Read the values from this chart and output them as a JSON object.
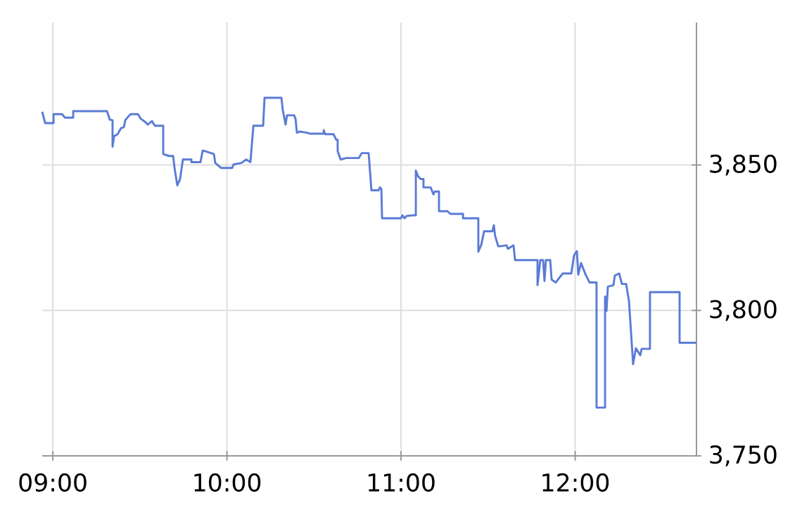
{
  "chart_data": {
    "type": "line",
    "color": "#5b7bd5",
    "grid": true,
    "xlim": [
      8.939,
      12.697
    ],
    "ylim": [
      3750,
      3899
    ],
    "xticks": [
      {
        "value": 9,
        "label": "09:00"
      },
      {
        "value": 10,
        "label": "10:00"
      },
      {
        "value": 11,
        "label": "11:00"
      },
      {
        "value": 12,
        "label": "12:00"
      }
    ],
    "yticks": [
      {
        "value": 3750,
        "label": "3,750"
      },
      {
        "value": 3800,
        "label": "3,800"
      },
      {
        "value": 3850,
        "label": "3,850"
      }
    ],
    "x": [
      8.939,
      8.956,
      9.004,
      9.004,
      9.053,
      9.069,
      9.117,
      9.117,
      9.311,
      9.327,
      9.343,
      9.343,
      9.352,
      9.372,
      9.392,
      9.408,
      9.416,
      9.44,
      9.448,
      9.489,
      9.505,
      9.529,
      9.545,
      9.57,
      9.586,
      9.634,
      9.634,
      9.667,
      9.691,
      9.699,
      9.715,
      9.731,
      9.747,
      9.796,
      9.796,
      9.848,
      9.861,
      9.925,
      9.933,
      9.966,
      10.03,
      10.038,
      10.083,
      10.111,
      10.135,
      10.152,
      10.208,
      10.216,
      10.313,
      10.321,
      10.337,
      10.345,
      10.386,
      10.394,
      10.402,
      10.418,
      10.459,
      10.475,
      10.556,
      10.556,
      10.564,
      10.612,
      10.628,
      10.636,
      10.636,
      10.653,
      10.685,
      10.758,
      10.774,
      10.814,
      10.83,
      10.871,
      10.879,
      10.887,
      10.891,
      11.0,
      11.008,
      11.02,
      11.032,
      11.065,
      11.085,
      11.085,
      11.097,
      11.113,
      11.129,
      11.129,
      11.17,
      11.186,
      11.194,
      11.218,
      11.218,
      11.267,
      11.283,
      11.356,
      11.356,
      11.444,
      11.444,
      11.461,
      11.477,
      11.525,
      11.533,
      11.541,
      11.558,
      11.574,
      11.606,
      11.614,
      11.646,
      11.655,
      11.735,
      11.784,
      11.784,
      11.8,
      11.816,
      11.824,
      11.832,
      11.857,
      11.865,
      11.889,
      11.913,
      11.929,
      11.978,
      11.994,
      12.01,
      12.018,
      12.034,
      12.059,
      12.083,
      12.123,
      12.123,
      12.172,
      12.172,
      12.18,
      12.188,
      12.22,
      12.228,
      12.253,
      12.269,
      12.293,
      12.309,
      12.333,
      12.349,
      12.374,
      12.382,
      12.43,
      12.43,
      12.6,
      12.6,
      12.697
    ],
    "values": [
      3868.3,
      3864.4,
      3864.4,
      3867.5,
      3867.5,
      3866.3,
      3866.3,
      3868.5,
      3868.5,
      3865.6,
      3865.4,
      3856.3,
      3859.9,
      3860.6,
      3862.7,
      3863.0,
      3865.4,
      3867.1,
      3867.5,
      3867.5,
      3865.9,
      3864.9,
      3863.9,
      3865.1,
      3863.5,
      3863.5,
      3853.8,
      3853.1,
      3853.1,
      3849.0,
      3843.0,
      3845.2,
      3851.9,
      3851.9,
      3851.0,
      3851.0,
      3855.0,
      3853.8,
      3850.7,
      3849.0,
      3849.0,
      3850.2,
      3850.7,
      3851.9,
      3851.0,
      3863.5,
      3863.5,
      3873.1,
      3873.1,
      3868.8,
      3863.9,
      3867.1,
      3867.1,
      3865.9,
      3861.1,
      3861.5,
      3861.1,
      3860.8,
      3860.8,
      3862.0,
      3860.6,
      3860.6,
      3858.7,
      3858.7,
      3854.8,
      3851.9,
      3852.4,
      3852.4,
      3854.1,
      3854.1,
      3841.3,
      3841.3,
      3842.3,
      3841.8,
      3831.7,
      3831.7,
      3832.7,
      3831.7,
      3832.5,
      3832.7,
      3832.7,
      3848.1,
      3846.2,
      3845.2,
      3845.2,
      3842.3,
      3842.3,
      3839.9,
      3840.9,
      3840.9,
      3834.1,
      3834.1,
      3833.2,
      3833.2,
      3831.7,
      3831.7,
      3820.2,
      3822.6,
      3827.2,
      3827.2,
      3829.3,
      3825.5,
      3822.1,
      3822.1,
      3822.4,
      3821.2,
      3822.4,
      3817.3,
      3817.3,
      3817.3,
      3808.7,
      3817.3,
      3817.3,
      3810.1,
      3817.3,
      3817.3,
      3810.6,
      3809.6,
      3811.5,
      3812.7,
      3812.7,
      3819.0,
      3820.4,
      3812.3,
      3816.3,
      3812.5,
      3809.6,
      3809.6,
      3766.6,
      3766.6,
      3804.8,
      3799.8,
      3808.2,
      3808.7,
      3812.0,
      3812.7,
      3809.1,
      3809.1,
      3803.4,
      3781.5,
      3787.0,
      3784.6,
      3786.8,
      3786.8,
      3806.3,
      3806.3,
      3788.9,
      3788.9
    ]
  }
}
